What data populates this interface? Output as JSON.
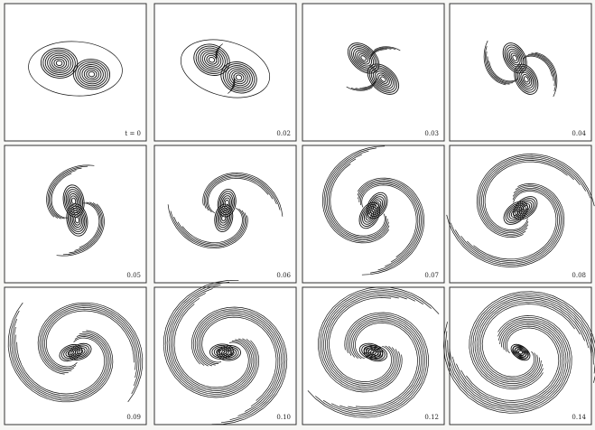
{
  "panels": [
    {
      "label": "t = 0"
    },
    {
      "label": "0.02"
    },
    {
      "label": "0.03"
    },
    {
      "label": "0.04"
    },
    {
      "label": "0.05"
    },
    {
      "label": "0.06"
    },
    {
      "label": "0.07"
    },
    {
      "label": "0.08"
    },
    {
      "label": "0.09"
    },
    {
      "label": "0.10"
    },
    {
      "label": "0.12"
    },
    {
      "label": "0.14"
    }
  ]
}
